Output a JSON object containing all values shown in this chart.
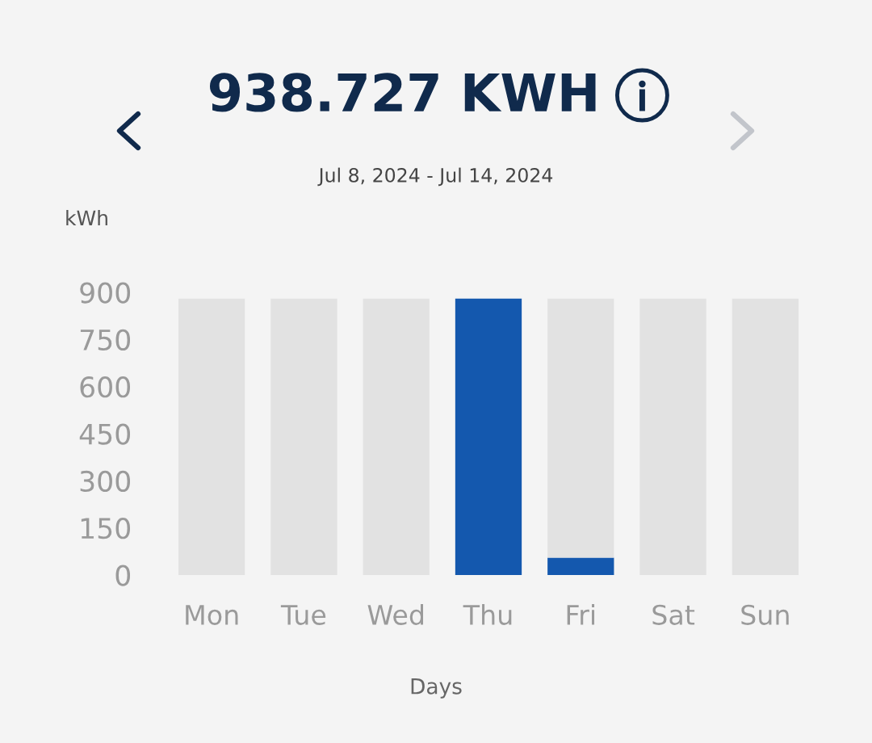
{
  "chart_data": {
    "type": "bar",
    "title": "938.727 KWH",
    "subtitle": "Jul 8, 2024 - Jul 14, 2024",
    "ylabel": "kWh",
    "xlabel": "Days",
    "categories": [
      "Mon",
      "Tue",
      "Wed",
      "Thu",
      "Fri",
      "Sat",
      "Sun"
    ],
    "stacked": true,
    "series": [
      {
        "color": "#1458ae",
        "values": [
          0,
          0,
          0,
          880,
          55,
          0,
          0
        ]
      },
      {
        "color": "#e2e2e2",
        "values": [
          880,
          880,
          880,
          0,
          825,
          880,
          880
        ]
      }
    ],
    "ylim": [
      0,
      900
    ],
    "yticks": [
      0,
      150,
      300,
      450,
      600,
      750,
      900
    ]
  }
}
